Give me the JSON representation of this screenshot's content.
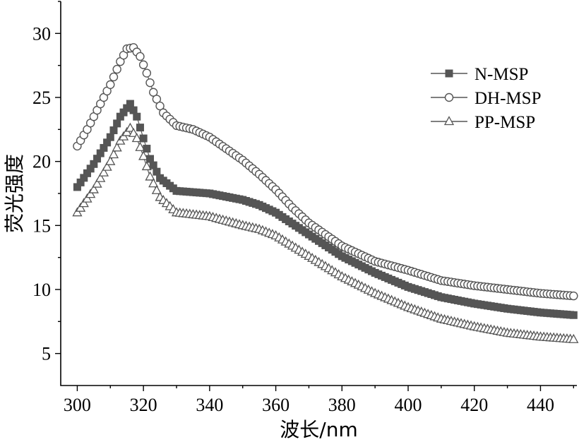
{
  "chart_data": {
    "type": "line",
    "xlabel": "波长/nm",
    "ylabel": "荧光强度",
    "xlim": [
      295,
      451
    ],
    "ylim": [
      2.5,
      32.5
    ],
    "xticks": [
      300,
      320,
      340,
      360,
      380,
      400,
      420,
      440
    ],
    "yticks": [
      5,
      10,
      15,
      20,
      25,
      30
    ],
    "legend_position": "top-right",
    "grid": false,
    "series": [
      {
        "name": "N-MSP",
        "marker": "filled-square",
        "color": "#555555",
        "x": [
          300,
          305,
          310,
          313,
          316,
          318,
          320,
          322,
          325,
          330,
          340,
          350,
          355,
          360,
          370,
          380,
          390,
          400,
          410,
          420,
          430,
          440,
          450
        ],
        "y": [
          18.0,
          19.8,
          21.9,
          23.5,
          24.5,
          23.5,
          21.8,
          20.2,
          18.7,
          17.7,
          17.5,
          17.0,
          16.6,
          16.0,
          14.3,
          12.6,
          11.3,
          10.2,
          9.4,
          8.9,
          8.5,
          8.2,
          8.0
        ]
      },
      {
        "name": "DH-MSP",
        "marker": "open-circle",
        "color": "#555555",
        "x": [
          300,
          303,
          306,
          310,
          313,
          315,
          317,
          319,
          321,
          323,
          326,
          330,
          335,
          340,
          345,
          350,
          355,
          360,
          365,
          370,
          380,
          390,
          400,
          410,
          420,
          430,
          440,
          450
        ],
        "y": [
          21.2,
          22.5,
          24.0,
          26.0,
          27.8,
          28.8,
          28.9,
          28.2,
          26.9,
          25.4,
          23.8,
          22.8,
          22.5,
          21.9,
          21.0,
          20.1,
          19.0,
          17.8,
          16.4,
          15.2,
          13.4,
          12.2,
          11.5,
          10.7,
          10.3,
          10.0,
          9.7,
          9.5
        ]
      },
      {
        "name": "PP-MSP",
        "marker": "open-triangle",
        "color": "#555555",
        "x": [
          300,
          305,
          310,
          313,
          316,
          318,
          320,
          322,
          325,
          330,
          340,
          350,
          355,
          360,
          370,
          380,
          390,
          400,
          410,
          420,
          430,
          440,
          450
        ],
        "y": [
          16.0,
          17.8,
          20.0,
          21.6,
          22.6,
          21.8,
          20.4,
          18.8,
          17.2,
          16.0,
          15.7,
          15.0,
          14.7,
          14.2,
          12.6,
          11.0,
          9.7,
          8.6,
          7.7,
          7.1,
          6.6,
          6.3,
          6.1
        ]
      }
    ]
  }
}
